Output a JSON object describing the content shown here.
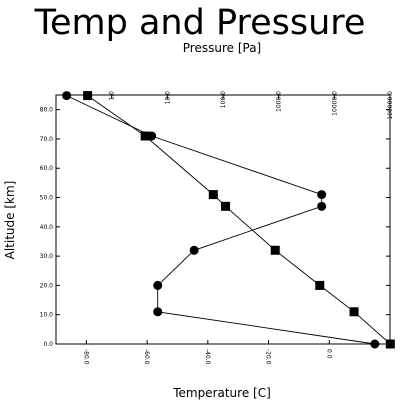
{
  "chart_data": {
    "type": "line",
    "title": "Temp and Pressure",
    "xlabel_bottom": "Temperature [C]",
    "xlabel_top": "Pressure [Pa]",
    "ylabel": "Altitude [km]",
    "ylim": [
      0,
      85
    ],
    "bottom_xlim": [
      -90,
      20
    ],
    "top_xlim_log": [
      0.1,
      100000
    ],
    "grid": false,
    "y_ticks": [
      "0.0",
      "10.0",
      "20.0",
      "30.0",
      "40.0",
      "50.0",
      "60.0",
      "70.0",
      "80.0"
    ],
    "y_tick_values": [
      0,
      10,
      20,
      30,
      40,
      50,
      60,
      70,
      80
    ],
    "bottom_ticks": [
      "-80.0",
      "-60.0",
      "-40.0",
      "-20.0",
      "0.0"
    ],
    "bottom_tick_values": [
      -80,
      -60,
      -40,
      -20,
      0
    ],
    "top_ticks": [
      "1.0",
      "10.0",
      "100.0",
      "1000.0",
      "10000.0",
      "100000.0"
    ],
    "top_tick_values": [
      1,
      10,
      100,
      1000,
      10000,
      100000
    ],
    "series": [
      {
        "marker": "circle",
        "axis": "bottom",
        "x": [
          15,
          -56.5,
          -56.5,
          -44.5,
          -2.5,
          -2.5,
          -58.5,
          -86.5
        ],
        "y": [
          0,
          11,
          20,
          32,
          47,
          51,
          71,
          84.8
        ]
      },
      {
        "marker": "square",
        "axis": "top",
        "x": [
          101325,
          22632,
          5475,
          868,
          111,
          67,
          4,
          0.37
        ],
        "y": [
          0,
          11,
          20,
          32,
          47,
          51,
          71,
          84.8
        ]
      }
    ]
  }
}
